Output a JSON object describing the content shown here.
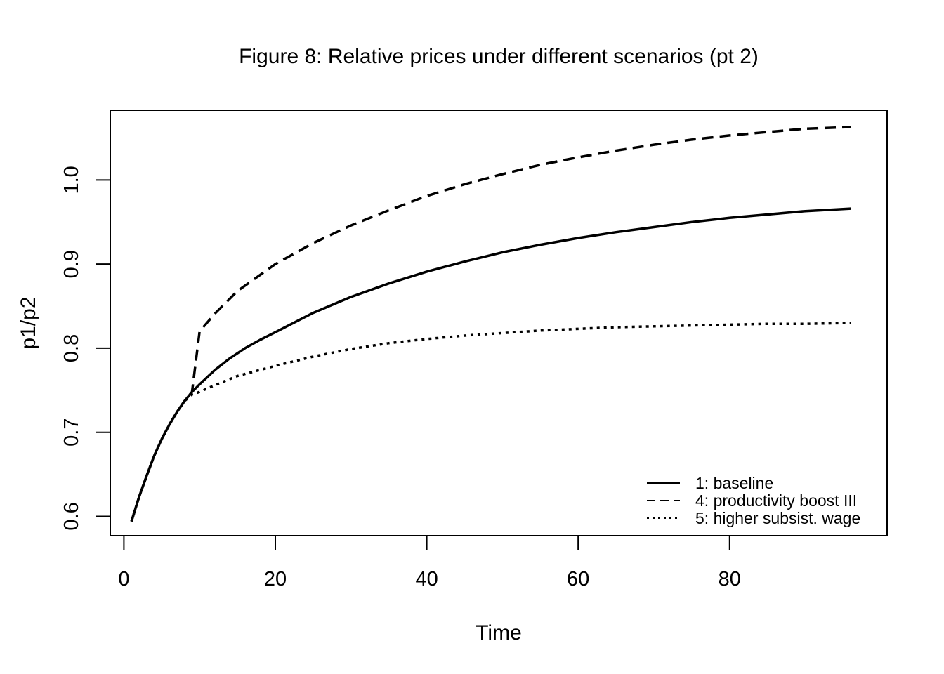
{
  "chart_data": {
    "type": "line",
    "title": "Figure 8: Relative prices under different scenarios (pt 2)",
    "xlabel": "Time",
    "ylabel": "p1/p2",
    "xlim": [
      -1.8,
      100.8
    ],
    "ylim": [
      0.577,
      1.083
    ],
    "xticks": [
      0,
      20,
      40,
      60,
      80
    ],
    "yticks": [
      0.6,
      0.7,
      0.8,
      0.9,
      1.0
    ],
    "xtick_labels": [
      "0",
      "20",
      "40",
      "60",
      "80"
    ],
    "ytick_labels": [
      "0.6",
      "0.7",
      "0.8",
      "0.9",
      "1.0"
    ],
    "grid": false,
    "legend_position": "bottom-right",
    "series": [
      {
        "name": "1: baseline",
        "style": "solid",
        "x": [
          1,
          2,
          3,
          4,
          5,
          6,
          7,
          8,
          9,
          10,
          12,
          14,
          16,
          18,
          20,
          25,
          30,
          35,
          40,
          45,
          50,
          55,
          60,
          65,
          70,
          75,
          80,
          85,
          90,
          96
        ],
        "y": [
          0.594,
          0.623,
          0.648,
          0.672,
          0.692,
          0.709,
          0.724,
          0.737,
          0.748,
          0.757,
          0.774,
          0.788,
          0.8,
          0.81,
          0.819,
          0.842,
          0.861,
          0.877,
          0.891,
          0.903,
          0.914,
          0.923,
          0.931,
          0.938,
          0.944,
          0.95,
          0.955,
          0.959,
          0.963,
          0.966
        ]
      },
      {
        "name": "4: productivity boost III",
        "style": "dashed",
        "x": [
          1,
          2,
          3,
          4,
          5,
          6,
          7,
          8,
          9,
          10,
          12,
          15,
          20,
          25,
          30,
          35,
          40,
          45,
          50,
          55,
          60,
          65,
          70,
          75,
          80,
          85,
          90,
          96
        ],
        "y": [
          0.594,
          0.623,
          0.648,
          0.672,
          0.692,
          0.709,
          0.724,
          0.737,
          0.748,
          0.82,
          0.841,
          0.868,
          0.9,
          0.925,
          0.946,
          0.964,
          0.981,
          0.995,
          1.007,
          1.018,
          1.027,
          1.035,
          1.042,
          1.048,
          1.053,
          1.057,
          1.061,
          1.063
        ]
      },
      {
        "name": "5: higher subsist. wage",
        "style": "dotted",
        "x": [
          1,
          2,
          3,
          4,
          5,
          6,
          7,
          8,
          9,
          10,
          12,
          15,
          20,
          25,
          30,
          35,
          40,
          45,
          50,
          55,
          60,
          65,
          70,
          75,
          80,
          85,
          90,
          96
        ],
        "y": [
          0.594,
          0.623,
          0.648,
          0.672,
          0.692,
          0.709,
          0.724,
          0.737,
          0.745,
          0.748,
          0.756,
          0.767,
          0.779,
          0.79,
          0.799,
          0.806,
          0.811,
          0.815,
          0.818,
          0.821,
          0.823,
          0.825,
          0.826,
          0.827,
          0.828,
          0.829,
          0.829,
          0.83
        ]
      }
    ]
  }
}
